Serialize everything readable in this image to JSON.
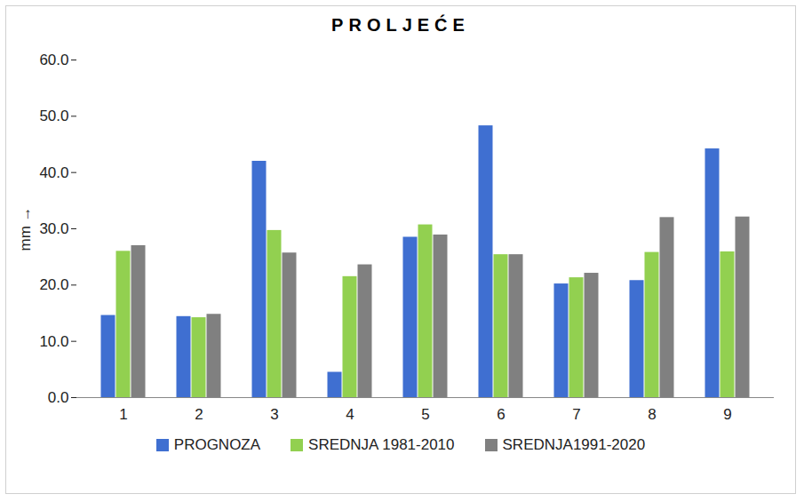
{
  "chart_data": {
    "type": "bar",
    "title": "PROLJEĆE",
    "y_label": "mm",
    "categories": [
      "1",
      "2",
      "3",
      "4",
      "5",
      "6",
      "7",
      "8",
      "9"
    ],
    "series": [
      {
        "name": "PROGNOZA",
        "color": "#3f6fd1",
        "values": [
          14.6,
          14.4,
          42.0,
          4.5,
          28.5,
          48.3,
          20.2,
          20.8,
          44.2
        ]
      },
      {
        "name": "SREDNJA 1981-2010",
        "color": "#92d050",
        "values": [
          26.0,
          14.2,
          29.7,
          21.5,
          30.7,
          25.4,
          21.3,
          25.8,
          25.9
        ]
      },
      {
        "name": "SREDNJA1991-2020",
        "color": "#808080",
        "values": [
          27.0,
          14.8,
          25.7,
          23.6,
          28.9,
          25.4,
          22.1,
          32.0,
          32.1
        ]
      }
    ],
    "ylim": [
      0,
      60
    ],
    "yticks": [
      {
        "value": 0,
        "label": "0.0"
      },
      {
        "value": 10,
        "label": "10.0"
      },
      {
        "value": 20,
        "label": "20.0"
      },
      {
        "value": 30,
        "label": "30.0"
      },
      {
        "value": 40,
        "label": "40.0"
      },
      {
        "value": 50,
        "label": "50.0"
      },
      {
        "value": 60,
        "label": "60.0"
      }
    ],
    "grid": false,
    "legend": "bottom"
  }
}
